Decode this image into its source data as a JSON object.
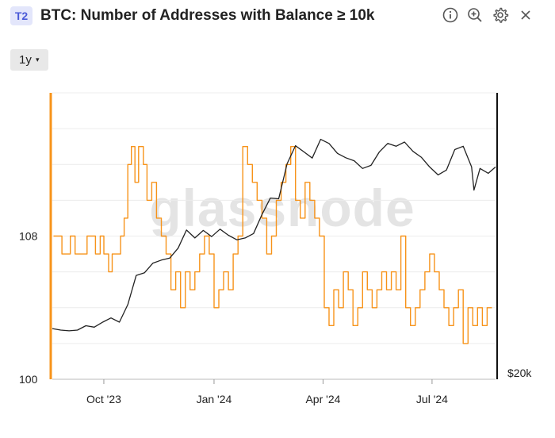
{
  "header": {
    "badge": "T2",
    "title": "BTC: Number of Addresses with Balance ≥ 10k",
    "icons": [
      "info-icon",
      "zoom-in-icon",
      "gear-icon",
      "close-icon"
    ]
  },
  "toolbar": {
    "resolution_label": "1y",
    "caret": "▾"
  },
  "watermark": "glassnode",
  "colors": {
    "accent": "#f7931a",
    "price": "#222222",
    "badge_bg": "#e3e6fb",
    "badge_fg": "#4a5ad8"
  },
  "chart_data": {
    "type": "line",
    "title": "BTC: Number of Addresses with Balance ≥ 10k",
    "x_ticks": [
      "Oct '23",
      "Jan '24",
      "Apr '24",
      "Jul '24"
    ],
    "x_tick_dates": [
      "2023-10-01",
      "2024-01-01",
      "2024-04-01",
      "2024-07-01"
    ],
    "x_range": [
      "2023-08-19",
      "2024-08-23"
    ],
    "left_axis": {
      "ticks": [
        "100",
        "108"
      ],
      "tick_values": [
        100,
        108
      ],
      "range": [
        100,
        116
      ]
    },
    "right_axis": {
      "ticks": [
        "$20k"
      ],
      "tick_values": [
        20000
      ],
      "scale": "log",
      "range": [
        20000,
        90000
      ]
    },
    "grid": true,
    "series": [
      {
        "color": "#f7931a",
        "axis": "left",
        "step": true,
        "x": [
          "2023-08-20",
          "2023-08-27",
          "2023-09-03",
          "2023-09-07",
          "2023-09-10",
          "2023-09-17",
          "2023-09-24",
          "2023-09-28",
          "2023-10-01",
          "2023-10-05",
          "2023-10-08",
          "2023-10-15",
          "2023-10-18",
          "2023-10-21",
          "2023-10-24",
          "2023-10-27",
          "2023-10-30",
          "2023-11-03",
          "2023-11-06",
          "2023-11-10",
          "2023-11-14",
          "2023-11-18",
          "2023-11-22",
          "2023-11-26",
          "2023-11-30",
          "2023-12-04",
          "2023-12-08",
          "2023-12-12",
          "2023-12-16",
          "2023-12-20",
          "2023-12-24",
          "2023-12-28",
          "2024-01-01",
          "2024-01-05",
          "2024-01-09",
          "2024-01-13",
          "2024-01-17",
          "2024-01-21",
          "2024-01-25",
          "2024-01-29",
          "2024-02-02",
          "2024-02-06",
          "2024-02-10",
          "2024-02-14",
          "2024-02-18",
          "2024-02-22",
          "2024-02-26",
          "2024-03-01",
          "2024-03-05",
          "2024-03-09",
          "2024-03-13",
          "2024-03-17",
          "2024-03-21",
          "2024-03-25",
          "2024-03-29",
          "2024-04-02",
          "2024-04-06",
          "2024-04-10",
          "2024-04-14",
          "2024-04-18",
          "2024-04-22",
          "2024-04-26",
          "2024-04-30",
          "2024-05-04",
          "2024-05-08",
          "2024-05-12",
          "2024-05-16",
          "2024-05-20",
          "2024-05-24",
          "2024-05-28",
          "2024-06-01",
          "2024-06-05",
          "2024-06-09",
          "2024-06-13",
          "2024-06-17",
          "2024-06-21",
          "2024-06-25",
          "2024-06-29",
          "2024-07-03",
          "2024-07-07",
          "2024-07-11",
          "2024-07-15",
          "2024-07-19",
          "2024-07-23",
          "2024-07-27",
          "2024-07-31",
          "2024-08-04",
          "2024-08-08",
          "2024-08-12",
          "2024-08-16",
          "2024-08-20"
        ],
        "y": [
          108,
          107,
          108,
          107,
          107,
          108,
          107,
          108,
          107,
          106,
          107,
          108,
          109,
          112,
          113,
          111,
          113,
          112,
          110,
          111,
          109,
          108,
          107,
          105,
          106,
          104,
          106,
          105,
          106,
          107,
          108,
          107,
          104,
          105,
          106,
          105,
          107,
          108,
          113,
          112,
          111,
          110,
          109,
          107,
          108,
          110,
          111,
          112,
          113,
          110,
          109,
          111,
          110,
          109,
          108,
          104,
          103,
          105,
          104,
          106,
          105,
          103,
          104,
          106,
          105,
          104,
          105,
          106,
          105,
          106,
          105,
          108,
          104,
          103,
          104,
          105,
          106,
          107,
          106,
          105,
          104,
          103,
          104,
          105,
          102,
          104,
          103,
          104,
          103,
          104,
          104
        ]
      },
      {
        "color": "#222222",
        "axis": "right",
        "x": [
          "2023-08-19",
          "2023-08-26",
          "2023-09-02",
          "2023-09-09",
          "2023-09-16",
          "2023-09-23",
          "2023-09-30",
          "2023-10-07",
          "2023-10-14",
          "2023-10-21",
          "2023-10-28",
          "2023-11-04",
          "2023-11-11",
          "2023-11-18",
          "2023-11-25",
          "2023-12-02",
          "2023-12-09",
          "2023-12-16",
          "2023-12-23",
          "2023-12-30",
          "2024-01-06",
          "2024-01-13",
          "2024-01-20",
          "2024-01-27",
          "2024-02-03",
          "2024-02-10",
          "2024-02-17",
          "2024-02-24",
          "2024-03-02",
          "2024-03-09",
          "2024-03-16",
          "2024-03-23",
          "2024-03-30",
          "2024-04-06",
          "2024-04-13",
          "2024-04-20",
          "2024-04-27",
          "2024-05-04",
          "2024-05-11",
          "2024-05-18",
          "2024-05-25",
          "2024-06-01",
          "2024-06-08",
          "2024-06-15",
          "2024-06-22",
          "2024-06-29",
          "2024-07-06",
          "2024-07-13",
          "2024-07-20",
          "2024-07-27",
          "2024-08-03",
          "2024-08-05",
          "2024-08-10",
          "2024-08-17",
          "2024-08-23"
        ],
        "y": [
          26100,
          25900,
          25800,
          25900,
          26500,
          26300,
          27000,
          27600,
          27000,
          29600,
          34500,
          35000,
          36800,
          37400,
          37800,
          39800,
          43800,
          42000,
          43700,
          42300,
          44000,
          42600,
          41600,
          42000,
          43000,
          47500,
          51800,
          51600,
          62000,
          68200,
          66000,
          63900,
          70500,
          69000,
          65500,
          64000,
          63000,
          60500,
          61500,
          66000,
          69000,
          68000,
          69500,
          66200,
          64200,
          61000,
          58500,
          60000,
          66800,
          68000,
          61000,
          54000,
          60500,
          59000,
          61000
        ]
      }
    ]
  }
}
